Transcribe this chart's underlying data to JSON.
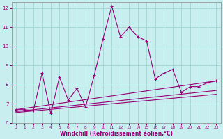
{
  "xlabel": "Windchill (Refroidissement éolien,°C)",
  "bg_color": "#c8eef0",
  "grid_color": "#a0d8d0",
  "line_color": "#990077",
  "xlim": [
    -0.5,
    23.5
  ],
  "ylim": [
    6,
    12.3
  ],
  "xticks": [
    0,
    1,
    2,
    3,
    4,
    5,
    6,
    7,
    8,
    9,
    10,
    11,
    12,
    13,
    14,
    15,
    16,
    17,
    18,
    19,
    20,
    21,
    22,
    23
  ],
  "yticks": [
    6,
    7,
    8,
    9,
    10,
    11,
    12
  ],
  "series1_x": [
    0,
    1,
    2,
    3,
    4,
    5,
    6,
    7,
    8,
    9,
    10,
    11,
    12,
    13,
    14,
    15,
    16,
    17,
    18,
    19,
    20,
    21,
    22,
    23
  ],
  "series1_y": [
    6.7,
    6.7,
    6.65,
    8.6,
    6.5,
    8.4,
    7.2,
    7.8,
    6.85,
    8.5,
    10.4,
    12.1,
    10.5,
    11.0,
    10.5,
    10.3,
    8.3,
    8.6,
    8.8,
    7.6,
    7.9,
    7.9,
    8.1,
    8.2
  ],
  "trend1_x": [
    0,
    23
  ],
  "trend1_y": [
    6.7,
    8.2
  ],
  "trend2_x": [
    0,
    23
  ],
  "trend2_y": [
    6.6,
    7.7
  ],
  "trend3_x": [
    0,
    23
  ],
  "trend3_y": [
    6.55,
    7.5
  ]
}
